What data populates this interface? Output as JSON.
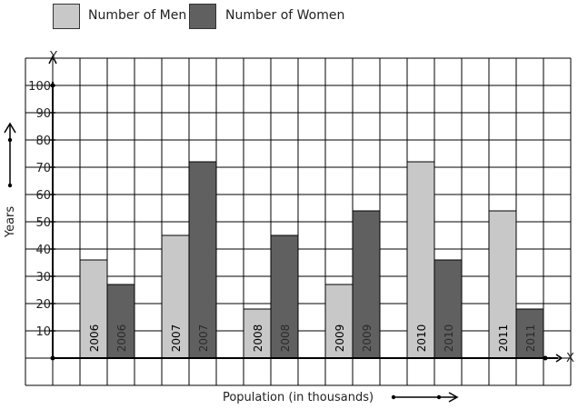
{
  "legend": {
    "men_label": "Number of Men",
    "women_label": "Number of Women"
  },
  "colors": {
    "men": "#c8c8c8",
    "women": "#606060",
    "grid": "#000000"
  },
  "chart_data": {
    "type": "bar",
    "categories": [
      "2006",
      "2007",
      "2008",
      "2009",
      "2010",
      "2011"
    ],
    "series": [
      {
        "name": "Number of Men",
        "values": [
          36,
          45,
          18,
          27,
          72,
          54
        ]
      },
      {
        "name": "Number of Women",
        "values": [
          27,
          72,
          45,
          54,
          36,
          18
        ]
      }
    ],
    "yticks": [
      "10",
      "20",
      "30",
      "40",
      "50",
      "60",
      "70",
      "80",
      "90",
      "100"
    ],
    "ylim": [
      0,
      100
    ],
    "xlabel": "Population (in thousands)",
    "ylabel": "Years",
    "x_axis_letter": "X",
    "y_axis_letter": "Y",
    "grid": true,
    "legend_position": "top-left"
  }
}
